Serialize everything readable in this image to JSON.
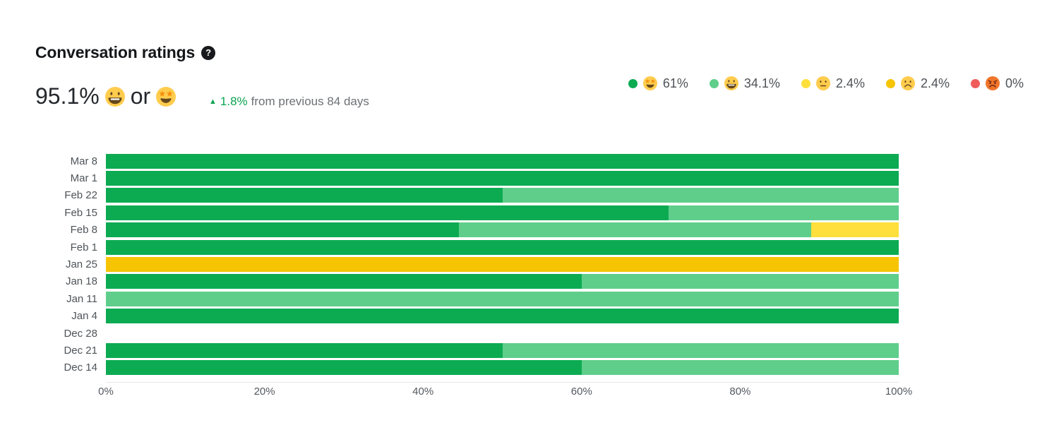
{
  "header": {
    "title": "Conversation ratings",
    "help_glyph": "?",
    "summary": {
      "value": "95.1%",
      "emoji_1": "grinning",
      "connector": "or",
      "emoji_2": "star-struck"
    },
    "delta": {
      "arrow": "▲",
      "value": "1.8%",
      "suffix": "from previous 84 days"
    }
  },
  "legend": {
    "items": [
      {
        "emoji": "star-struck",
        "label": "61%",
        "color": "#0cab52"
      },
      {
        "emoji": "grinning",
        "label": "34.1%",
        "color": "#5fce8b"
      },
      {
        "emoji": "neutral",
        "label": "2.4%",
        "color": "#ffdf3b"
      },
      {
        "emoji": "frowning",
        "label": "2.4%",
        "color": "#f6c400"
      },
      {
        "emoji": "angry",
        "label": "0%",
        "color": "#ee5c5c"
      }
    ]
  },
  "chart_data": {
    "type": "bar",
    "orientation": "horizontal",
    "stacked": true,
    "unit": "%",
    "title": "Conversation ratings",
    "x_axis": {
      "ticks": [
        "0%",
        "20%",
        "40%",
        "60%",
        "80%",
        "100%"
      ],
      "range": [
        0,
        100
      ],
      "grid": false
    },
    "legend_position": "top-right",
    "colors": {
      "amazing": "#0cab52",
      "great": "#5fce8b",
      "ok": "#ffdf3b",
      "bad": "#f6c400",
      "terrible": "#ee5c5c"
    },
    "totals": {
      "amazing": 61,
      "great": 34.1,
      "ok": 2.4,
      "bad": 2.4,
      "terrible": 0
    },
    "rows": [
      {
        "label": "Mar 8",
        "segments": [
          {
            "name": "amazing",
            "value": 100
          }
        ]
      },
      {
        "label": "Mar 1",
        "segments": [
          {
            "name": "amazing",
            "value": 100
          }
        ]
      },
      {
        "label": "Feb 22",
        "segments": [
          {
            "name": "amazing",
            "value": 50
          },
          {
            "name": "great",
            "value": 50
          }
        ]
      },
      {
        "label": "Feb 15",
        "segments": [
          {
            "name": "amazing",
            "value": 71
          },
          {
            "name": "great",
            "value": 29
          }
        ]
      },
      {
        "label": "Feb 8",
        "segments": [
          {
            "name": "amazing",
            "value": 44.5
          },
          {
            "name": "great",
            "value": 44.5
          },
          {
            "name": "ok",
            "value": 11
          }
        ]
      },
      {
        "label": "Feb 1",
        "segments": [
          {
            "name": "amazing",
            "value": 100
          }
        ]
      },
      {
        "label": "Jan 25",
        "segments": [
          {
            "name": "bad",
            "value": 100
          }
        ]
      },
      {
        "label": "Jan 18",
        "segments": [
          {
            "name": "amazing",
            "value": 60
          },
          {
            "name": "great",
            "value": 40
          }
        ]
      },
      {
        "label": "Jan 11",
        "segments": [
          {
            "name": "great",
            "value": 100
          }
        ]
      },
      {
        "label": "Jan 4",
        "segments": [
          {
            "name": "amazing",
            "value": 100
          }
        ]
      },
      {
        "label": "Dec 28",
        "segments": []
      },
      {
        "label": "Dec 21",
        "segments": [
          {
            "name": "amazing",
            "value": 50
          },
          {
            "name": "great",
            "value": 50
          }
        ]
      },
      {
        "label": "Dec 14",
        "segments": [
          {
            "name": "amazing",
            "value": 60
          },
          {
            "name": "great",
            "value": 40
          }
        ]
      }
    ]
  },
  "colors": {
    "accent_green": "#0ba34f",
    "text_dark": "#24282d",
    "text_gray": "#54595f",
    "axis_line": "#e7e7e7",
    "background": "#ffffff"
  }
}
